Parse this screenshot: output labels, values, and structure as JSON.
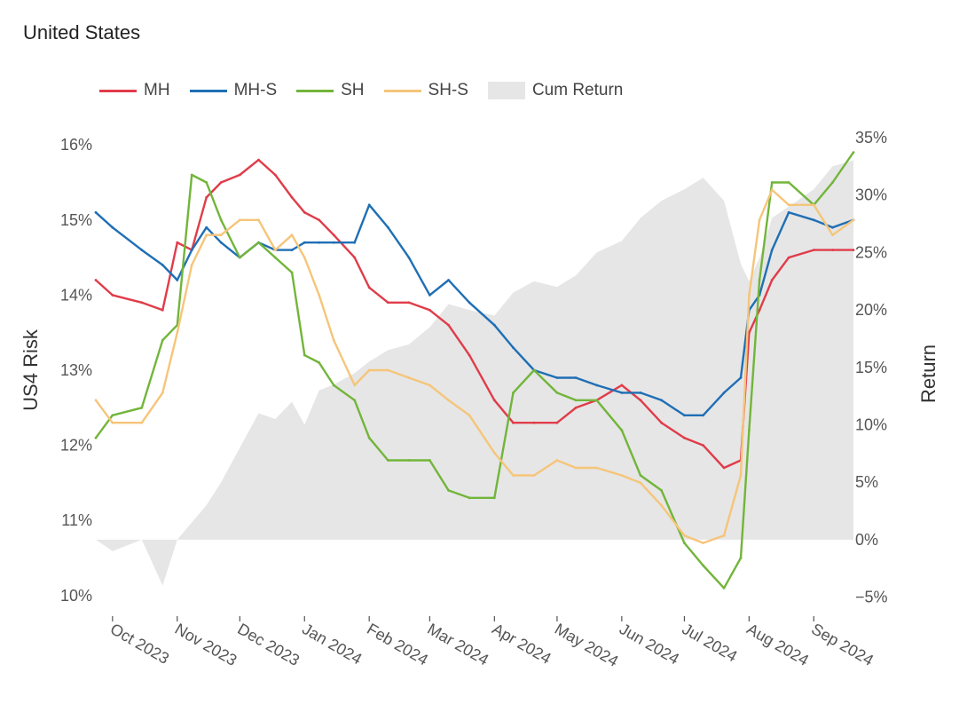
{
  "title": "United States",
  "chart_data": {
    "type": "line",
    "title": "United States",
    "ylabel": "US4 Risk",
    "y2label": "Return",
    "ylim": [
      9.75,
      16.25
    ],
    "y2lim": [
      -6.5,
      36.0
    ],
    "yticks": [
      10,
      11,
      12,
      13,
      14,
      15,
      16
    ],
    "ytick_labels": [
      "10%",
      "11%",
      "12%",
      "13%",
      "14%",
      "15%",
      "16%"
    ],
    "y2ticks": [
      -5,
      0,
      5,
      10,
      15,
      20,
      25,
      30,
      35
    ],
    "y2tick_labels": [
      "−5%",
      "0%",
      "5%",
      "10%",
      "15%",
      "20%",
      "25%",
      "30%",
      "35%"
    ],
    "xticks": [
      "2023-10-01",
      "2023-11-01",
      "2023-12-01",
      "2024-01-01",
      "2024-02-01",
      "2024-03-01",
      "2024-04-01",
      "2024-05-01",
      "2024-06-01",
      "2024-07-01",
      "2024-08-01",
      "2024-09-01"
    ],
    "xtick_labels": [
      "Oct 2023",
      "Nov 2023",
      "Dec 2023",
      "Jan 2024",
      "Feb 2024",
      "Mar 2024",
      "Apr 2024",
      "May 2024",
      "Jun 2024",
      "Jul 2024",
      "Aug 2024",
      "Sep 2024"
    ],
    "x_range": [
      "2023-09-23",
      "2024-09-20"
    ],
    "x": [
      "2023-09-23",
      "2023-10-01",
      "2023-10-15",
      "2023-10-25",
      "2023-11-01",
      "2023-11-08",
      "2023-11-15",
      "2023-11-22",
      "2023-12-01",
      "2023-12-10",
      "2023-12-18",
      "2023-12-26",
      "2024-01-01",
      "2024-01-08",
      "2024-01-15",
      "2024-01-25",
      "2024-02-01",
      "2024-02-10",
      "2024-02-20",
      "2024-03-01",
      "2024-03-10",
      "2024-03-20",
      "2024-04-01",
      "2024-04-10",
      "2024-04-20",
      "2024-05-01",
      "2024-05-10",
      "2024-05-20",
      "2024-06-01",
      "2024-06-10",
      "2024-06-20",
      "2024-07-01",
      "2024-07-10",
      "2024-07-20",
      "2024-07-28",
      "2024-08-01",
      "2024-08-06",
      "2024-08-12",
      "2024-08-20",
      "2024-09-01",
      "2024-09-10",
      "2024-09-20"
    ],
    "series": [
      {
        "name": "MH",
        "color": "#e03c4a",
        "values": [
          14.2,
          14.0,
          13.9,
          13.8,
          14.7,
          14.6,
          15.3,
          15.5,
          15.6,
          15.8,
          15.6,
          15.3,
          15.1,
          15.0,
          14.8,
          14.5,
          14.1,
          13.9,
          13.9,
          13.8,
          13.6,
          13.2,
          12.6,
          12.3,
          12.3,
          12.3,
          12.5,
          12.6,
          12.8,
          12.6,
          12.3,
          12.1,
          12.0,
          11.7,
          11.8,
          13.5,
          13.8,
          14.2,
          14.5,
          14.6,
          14.6,
          14.6
        ]
      },
      {
        "name": "MH-S",
        "color": "#1f6fb5",
        "values": [
          15.1,
          14.9,
          14.6,
          14.4,
          14.2,
          14.6,
          14.9,
          14.7,
          14.5,
          14.7,
          14.6,
          14.6,
          14.7,
          14.7,
          14.7,
          14.7,
          15.2,
          14.9,
          14.5,
          14.0,
          14.2,
          13.9,
          13.6,
          13.3,
          13.0,
          12.9,
          12.9,
          12.8,
          12.7,
          12.7,
          12.6,
          12.4,
          12.4,
          12.7,
          12.9,
          13.8,
          14.0,
          14.6,
          15.1,
          15.0,
          14.9,
          15.0
        ]
      },
      {
        "name": "SH",
        "color": "#72b53a",
        "values": [
          12.1,
          12.4,
          12.5,
          13.4,
          13.6,
          15.6,
          15.5,
          15.0,
          14.5,
          14.7,
          14.5,
          14.3,
          13.2,
          13.1,
          12.8,
          12.6,
          12.1,
          11.8,
          11.8,
          11.8,
          11.4,
          11.3,
          11.3,
          12.7,
          13.0,
          12.7,
          12.6,
          12.6,
          12.2,
          11.6,
          11.4,
          10.7,
          10.4,
          10.1,
          10.5,
          12.2,
          14.2,
          15.5,
          15.5,
          15.2,
          15.5,
          15.9
        ]
      },
      {
        "name": "SH-S",
        "color": "#f5c57a",
        "values": [
          12.6,
          12.3,
          12.3,
          12.7,
          13.5,
          14.4,
          14.8,
          14.8,
          15.0,
          15.0,
          14.6,
          14.8,
          14.5,
          14.0,
          13.4,
          12.8,
          13.0,
          13.0,
          12.9,
          12.8,
          12.6,
          12.4,
          11.9,
          11.6,
          11.6,
          11.8,
          11.7,
          11.7,
          11.6,
          11.5,
          11.2,
          10.8,
          10.7,
          10.8,
          11.6,
          14.0,
          15.0,
          15.4,
          15.2,
          15.2,
          14.8,
          15.0
        ]
      },
      {
        "name": "Cum Return",
        "color": "#e6e6e6",
        "axis": "right",
        "values": [
          0.0,
          -1.0,
          0.0,
          -4.0,
          0.0,
          1.5,
          3.0,
          5.0,
          8.0,
          11.0,
          10.5,
          12.0,
          10.0,
          13.0,
          13.5,
          14.5,
          15.5,
          16.5,
          17.0,
          18.5,
          20.5,
          20.0,
          19.5,
          21.5,
          22.5,
          22.0,
          23.0,
          25.0,
          26.0,
          28.0,
          29.5,
          30.5,
          31.5,
          29.5,
          24.0,
          22.5,
          24.5,
          28.0,
          29.0,
          30.5,
          32.5,
          33.0
        ]
      }
    ],
    "legend": [
      "MH",
      "MH-S",
      "SH",
      "SH-S",
      "Cum Return"
    ],
    "legend_position": "top-left",
    "grid": false
  }
}
